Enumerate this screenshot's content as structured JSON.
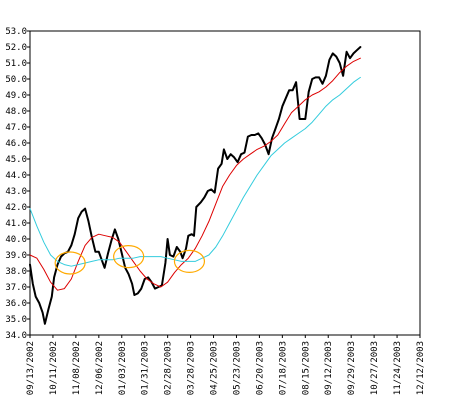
{
  "chart_data": {
    "type": "line",
    "title": "",
    "xlabel": "",
    "ylabel": "",
    "ylim": [
      34.0,
      53.0
    ],
    "grid": true,
    "legend": "none",
    "y_ticks": [
      "34.0",
      "35.0",
      "36.0",
      "37.0",
      "38.0",
      "39.0",
      "40.0",
      "41.0",
      "42.0",
      "43.0",
      "44.0",
      "45.0",
      "46.0",
      "47.0",
      "48.0",
      "49.0",
      "50.0",
      "51.0",
      "52.0",
      "53.0"
    ],
    "x_ticks": [
      "09/13/2002",
      "10/11/2002",
      "11/08/2002",
      "12/06/2002",
      "01/03/2003",
      "01/31/2003",
      "02/28/2003",
      "03/28/2003",
      "04/25/2003",
      "05/23/2003",
      "06/20/2003",
      "07/18/2003",
      "08/15/2003",
      "09/12/2003",
      "09/29/2003",
      "10/27/2003",
      "11/24/2003",
      "12/12/2003"
    ],
    "x_range": [
      0,
      17
    ],
    "series": [
      {
        "color": "#000000",
        "width": 2,
        "values": [
          [
            0.0,
            38.4
          ],
          [
            0.12,
            37.2
          ],
          [
            0.25,
            36.4
          ],
          [
            0.4,
            36.0
          ],
          [
            0.55,
            35.4
          ],
          [
            0.65,
            34.7
          ],
          [
            0.8,
            35.6
          ],
          [
            0.95,
            36.4
          ],
          [
            1.05,
            37.6
          ],
          [
            1.2,
            38.4
          ],
          [
            1.35,
            38.9
          ],
          [
            1.5,
            39.1
          ],
          [
            1.65,
            39.2
          ],
          [
            1.8,
            39.6
          ],
          [
            1.95,
            40.3
          ],
          [
            2.1,
            41.3
          ],
          [
            2.25,
            41.7
          ],
          [
            2.4,
            41.9
          ],
          [
            2.55,
            41.1
          ],
          [
            2.7,
            40.1
          ],
          [
            2.85,
            39.2
          ],
          [
            3.0,
            39.2
          ],
          [
            3.1,
            38.8
          ],
          [
            3.25,
            38.2
          ],
          [
            3.4,
            39.1
          ],
          [
            3.55,
            39.9
          ],
          [
            3.7,
            40.6
          ],
          [
            3.85,
            40.0
          ],
          [
            4.0,
            39.1
          ],
          [
            4.15,
            38.2
          ],
          [
            4.3,
            37.8
          ],
          [
            4.45,
            37.2
          ],
          [
            4.55,
            36.5
          ],
          [
            4.7,
            36.6
          ],
          [
            4.85,
            36.9
          ],
          [
            5.0,
            37.5
          ],
          [
            5.15,
            37.6
          ],
          [
            5.3,
            37.3
          ],
          [
            5.45,
            36.9
          ],
          [
            5.6,
            37.0
          ],
          [
            5.75,
            37.1
          ],
          [
            5.9,
            38.5
          ],
          [
            6.0,
            40.0
          ],
          [
            6.1,
            39.0
          ],
          [
            6.25,
            38.9
          ],
          [
            6.4,
            39.5
          ],
          [
            6.55,
            39.2
          ],
          [
            6.65,
            38.8
          ],
          [
            6.8,
            39.4
          ],
          [
            6.9,
            40.2
          ],
          [
            7.05,
            40.3
          ],
          [
            7.15,
            40.2
          ],
          [
            7.25,
            42.0
          ],
          [
            7.45,
            42.3
          ],
          [
            7.6,
            42.6
          ],
          [
            7.75,
            43.0
          ],
          [
            7.9,
            43.1
          ],
          [
            8.05,
            42.9
          ],
          [
            8.2,
            44.4
          ],
          [
            8.35,
            44.7
          ],
          [
            8.45,
            45.6
          ],
          [
            8.6,
            45.0
          ],
          [
            8.75,
            45.3
          ],
          [
            8.9,
            45.1
          ],
          [
            9.05,
            44.8
          ],
          [
            9.2,
            45.3
          ],
          [
            9.35,
            45.4
          ],
          [
            9.5,
            46.4
          ],
          [
            9.65,
            46.5
          ],
          [
            9.8,
            46.5
          ],
          [
            9.95,
            46.6
          ],
          [
            10.1,
            46.3
          ],
          [
            10.25,
            45.9
          ],
          [
            10.4,
            45.3
          ],
          [
            10.55,
            46.3
          ],
          [
            10.7,
            46.9
          ],
          [
            10.85,
            47.5
          ],
          [
            11.0,
            48.3
          ],
          [
            11.15,
            48.8
          ],
          [
            11.3,
            49.3
          ],
          [
            11.45,
            49.3
          ],
          [
            11.6,
            49.8
          ],
          [
            11.75,
            47.5
          ],
          [
            11.9,
            47.5
          ],
          [
            12.0,
            47.5
          ],
          [
            12.15,
            49.2
          ],
          [
            12.3,
            50.0
          ],
          [
            12.45,
            50.1
          ],
          [
            12.6,
            50.1
          ],
          [
            12.75,
            49.7
          ],
          [
            12.9,
            50.2
          ],
          [
            13.05,
            51.2
          ],
          [
            13.2,
            51.6
          ],
          [
            13.35,
            51.4
          ],
          [
            13.5,
            51.0
          ],
          [
            13.65,
            50.2
          ],
          [
            13.8,
            51.7
          ],
          [
            13.95,
            51.3
          ],
          [
            14.1,
            51.6
          ],
          [
            14.25,
            51.8
          ],
          [
            14.4,
            52.0
          ]
        ]
      },
      {
        "color": "#dd0000",
        "width": 1,
        "values": [
          [
            0.0,
            39.0
          ],
          [
            0.3,
            38.8
          ],
          [
            0.6,
            38.1
          ],
          [
            0.9,
            37.3
          ],
          [
            1.2,
            36.8
          ],
          [
            1.5,
            36.9
          ],
          [
            1.8,
            37.5
          ],
          [
            2.1,
            38.6
          ],
          [
            2.4,
            39.6
          ],
          [
            2.7,
            40.1
          ],
          [
            3.0,
            40.3
          ],
          [
            3.3,
            40.2
          ],
          [
            3.6,
            40.1
          ],
          [
            3.9,
            39.8
          ],
          [
            4.2,
            39.2
          ],
          [
            4.5,
            38.6
          ],
          [
            4.8,
            38.0
          ],
          [
            5.1,
            37.5
          ],
          [
            5.4,
            37.2
          ],
          [
            5.7,
            37.0
          ],
          [
            6.0,
            37.3
          ],
          [
            6.3,
            37.9
          ],
          [
            6.6,
            38.4
          ],
          [
            6.9,
            38.8
          ],
          [
            7.2,
            39.4
          ],
          [
            7.5,
            40.2
          ],
          [
            7.8,
            41.1
          ],
          [
            8.1,
            42.2
          ],
          [
            8.4,
            43.3
          ],
          [
            8.7,
            44.0
          ],
          [
            9.0,
            44.6
          ],
          [
            9.3,
            45.0
          ],
          [
            9.6,
            45.3
          ],
          [
            9.9,
            45.6
          ],
          [
            10.2,
            45.8
          ],
          [
            10.5,
            46.1
          ],
          [
            10.8,
            46.5
          ],
          [
            11.1,
            47.2
          ],
          [
            11.4,
            47.9
          ],
          [
            11.7,
            48.3
          ],
          [
            12.0,
            48.7
          ],
          [
            12.3,
            49.0
          ],
          [
            12.6,
            49.2
          ],
          [
            12.9,
            49.5
          ],
          [
            13.2,
            49.9
          ],
          [
            13.5,
            50.4
          ],
          [
            13.8,
            50.8
          ],
          [
            14.1,
            51.1
          ],
          [
            14.4,
            51.3
          ]
        ]
      },
      {
        "color": "#33ccdd",
        "width": 1,
        "values": [
          [
            0.0,
            41.9
          ],
          [
            0.3,
            40.8
          ],
          [
            0.6,
            39.8
          ],
          [
            0.9,
            39.0
          ],
          [
            1.2,
            38.6
          ],
          [
            1.5,
            38.4
          ],
          [
            1.8,
            38.3
          ],
          [
            2.1,
            38.4
          ],
          [
            2.4,
            38.5
          ],
          [
            2.7,
            38.6
          ],
          [
            3.0,
            38.7
          ],
          [
            3.3,
            38.7
          ],
          [
            3.6,
            38.7
          ],
          [
            3.9,
            38.8
          ],
          [
            4.2,
            38.8
          ],
          [
            4.5,
            38.8
          ],
          [
            4.8,
            38.9
          ],
          [
            5.1,
            38.9
          ],
          [
            5.4,
            38.9
          ],
          [
            5.7,
            38.9
          ],
          [
            6.0,
            38.8
          ],
          [
            6.3,
            38.7
          ],
          [
            6.6,
            38.6
          ],
          [
            6.9,
            38.6
          ],
          [
            7.2,
            38.6
          ],
          [
            7.5,
            38.8
          ],
          [
            7.8,
            39.0
          ],
          [
            8.1,
            39.5
          ],
          [
            8.4,
            40.2
          ],
          [
            8.7,
            41.0
          ],
          [
            9.0,
            41.8
          ],
          [
            9.3,
            42.6
          ],
          [
            9.6,
            43.3
          ],
          [
            9.9,
            44.0
          ],
          [
            10.2,
            44.6
          ],
          [
            10.5,
            45.2
          ],
          [
            10.8,
            45.6
          ],
          [
            11.1,
            46.0
          ],
          [
            11.4,
            46.3
          ],
          [
            11.7,
            46.6
          ],
          [
            12.0,
            46.9
          ],
          [
            12.3,
            47.3
          ],
          [
            12.6,
            47.8
          ],
          [
            12.9,
            48.3
          ],
          [
            13.2,
            48.7
          ],
          [
            13.5,
            49.0
          ],
          [
            13.8,
            49.4
          ],
          [
            14.1,
            49.8
          ],
          [
            14.4,
            50.1
          ]
        ]
      }
    ],
    "annotations": [
      {
        "type": "circle",
        "color": "#ffaa00",
        "x": 1.75,
        "y": 38.5
      },
      {
        "type": "circle",
        "color": "#ffaa00",
        "x": 4.3,
        "y": 38.9
      },
      {
        "type": "circle",
        "color": "#ffaa00",
        "x": 6.95,
        "y": 38.6
      }
    ]
  }
}
